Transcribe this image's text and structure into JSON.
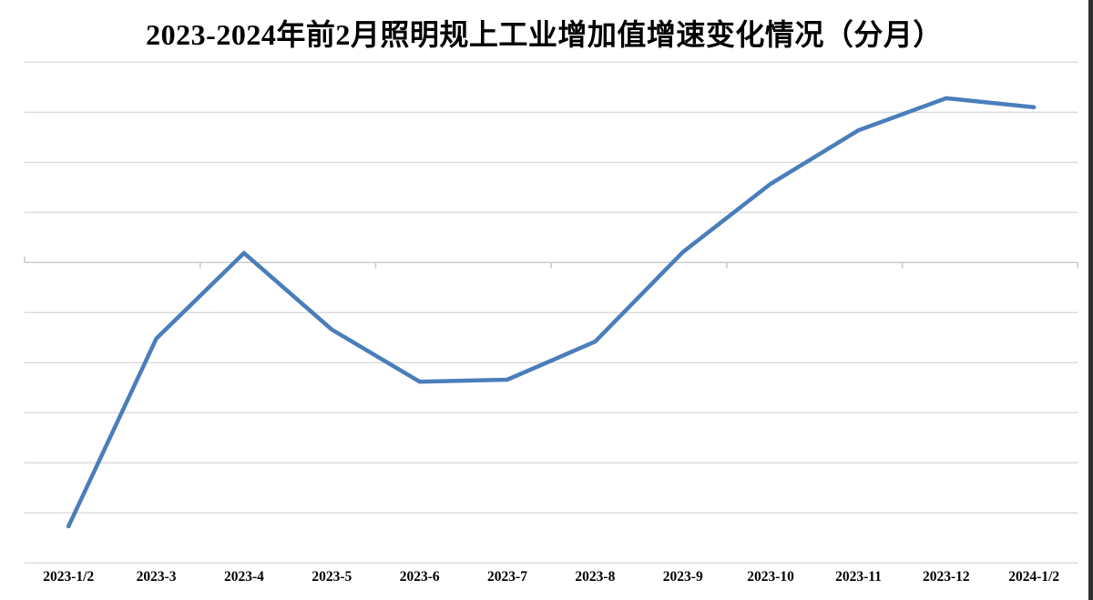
{
  "title": "2023-2024年前2月照明规上工业增加值增速变化情况（分月）",
  "chart_data": {
    "type": "line",
    "title": "2023-2024年前2月照明规上工业增加值增速变化情况（分月）",
    "categories": [
      "2023-1/2",
      "2023-3",
      "2023-4",
      "2023-5",
      "2023-6",
      "2023-7",
      "2023-8",
      "2023-9",
      "2023-10",
      "2023-11",
      "2023-12",
      "2024-1/2"
    ],
    "series": [
      {
        "name": "照明规上工业增加值增速",
        "values": [
          -5.27,
          -1.52,
          0.19,
          -1.34,
          -2.38,
          -2.34,
          -1.58,
          0.21,
          1.57,
          2.64,
          3.28,
          3.1
        ]
      }
    ],
    "value_unit": "gridline units; y-axis tick labels are not visible in the image, 0 = the tick-marked baseline gridline",
    "ylim": [
      -6,
      4
    ],
    "gridline_count": 11,
    "grid": "horizontal only",
    "legend": "none",
    "xlabel": "",
    "ylabel": "",
    "baseline_tick_interval_categories": 2,
    "colors": {
      "line": "#4A7EBB",
      "gridline": "#DADADA",
      "baseline_axis": "#C8C8C8",
      "text": "#000000",
      "background": "#FFFFFF",
      "screen_edge": "#2F2F2F"
    }
  }
}
